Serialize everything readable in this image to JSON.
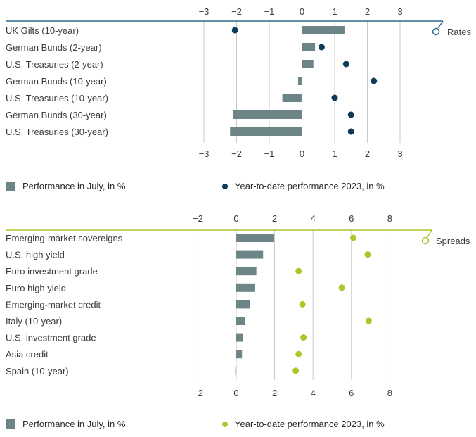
{
  "chart_data": [
    {
      "type": "bar",
      "title": "Rates",
      "xlim": [
        -3,
        3
      ],
      "ticks": [
        -3,
        -2,
        -1,
        0,
        1,
        2,
        3
      ],
      "tick_labels": [
        "−3",
        "−2",
        "−1",
        "0",
        "1",
        "2",
        "3"
      ],
      "categories": [
        "UK Gilts (10-year)",
        "German Bunds (2-year)",
        "U.S. Treasuries (2-year)",
        "German Bunds (10-year)",
        "U.S. Treasuries (10-year)",
        "German Bunds (30-year)",
        "U.S. Treasuries (30-year)"
      ],
      "series": [
        {
          "name": "Performance in July, in %",
          "kind": "bar",
          "values": [
            1.3,
            0.4,
            0.35,
            -0.12,
            -0.6,
            -2.1,
            -2.2
          ]
        },
        {
          "name": "Year-to-date performance 2023, in %",
          "kind": "dot",
          "values": [
            -2.05,
            0.6,
            1.35,
            2.2,
            1.0,
            1.5,
            1.5
          ]
        }
      ],
      "legend": {
        "bar_label": "Performance in July, in %",
        "dot_label": "Year-to-date performance 2023, in %"
      },
      "colors": {
        "bar": "#6e8587",
        "dot": "#0e3a5a",
        "axis": "#2e6f8e",
        "grid": "#c9c9c9"
      }
    },
    {
      "type": "bar",
      "title": "Spreads",
      "xlim": [
        -2,
        8
      ],
      "ticks": [
        -2,
        0,
        2,
        4,
        6,
        8
      ],
      "tick_labels": [
        "−2",
        "0",
        "2",
        "4",
        "6",
        "8"
      ],
      "categories": [
        "Emerging-market sovereigns",
        "U.S. high yield",
        "Euro investment grade",
        "Euro high yield",
        "Emerging-market credit",
        "Italy (10-year)",
        "U.S. investment grade",
        "Asia credit",
        "Spain (10-year)"
      ],
      "series": [
        {
          "name": "Performance in July, in %",
          "kind": "bar",
          "values": [
            1.95,
            1.4,
            1.05,
            0.95,
            0.7,
            0.45,
            0.35,
            0.3,
            -0.05
          ]
        },
        {
          "name": "Year-to-date performance 2023, in %",
          "kind": "dot",
          "values": [
            6.1,
            6.85,
            3.25,
            5.5,
            3.45,
            6.9,
            3.5,
            3.25,
            3.1
          ]
        }
      ],
      "legend": {
        "bar_label": "Performance in July, in %",
        "dot_label": "Year-to-date performance 2023, in %"
      },
      "colors": {
        "bar": "#6e8587",
        "dot": "#a8c92a",
        "axis": "#a8c92a",
        "grid": "#c9c9c9"
      }
    }
  ]
}
